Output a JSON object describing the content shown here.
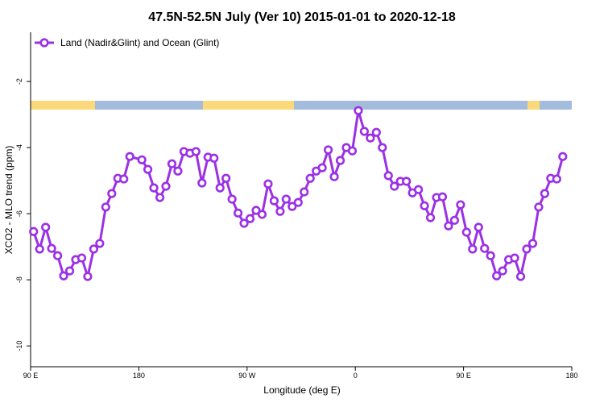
{
  "chart_data": {
    "type": "line",
    "title": "47.5N-52.5N July (Ver 10)   2015-01-01 to 2020-12-18",
    "x_label": "Longitude (deg E)",
    "y_label": "XCO2 - MLO trend (ppm)",
    "x": [
      92.5,
      97.5,
      102.5,
      107.5,
      112.5,
      117.5,
      122.5,
      127.5,
      132.5,
      137.5,
      142.5,
      147.5,
      152.5,
      157.5,
      162.5,
      167.5,
      172.5,
      182.5,
      187.5,
      192.5,
      197.5,
      202.5,
      207.5,
      212.5,
      217.5,
      222.5,
      227.5,
      232.5,
      237.5,
      242.5,
      247.5,
      252.5,
      257.5,
      262.5,
      267.5,
      272.5,
      277.5,
      282.5,
      287.5,
      292.5,
      297.5,
      302.5,
      307.5,
      312.5,
      317.5,
      322.5,
      327.5,
      332.5,
      337.5,
      342.5,
      347.5,
      352.5,
      357.5,
      362.5,
      367.5,
      372.5,
      377.5,
      382.5,
      387.5,
      392.5,
      397.5,
      402.5,
      407.5,
      412.5,
      417.5,
      422.5,
      427.5,
      432.5,
      437.5,
      442.5,
      447.5,
      452.5,
      457.5,
      462.5,
      467.5,
      472.5,
      477.5,
      482.5,
      487.5,
      492.5,
      497.5,
      502.5,
      507.5,
      512.5,
      517.5,
      522.5,
      527.5,
      532.5
    ],
    "series": [
      {
        "name": "Land (Nadir&Glint) and Ocean (Glint)",
        "color": "#9b30e6",
        "values": [
          -6.54,
          -7.07,
          -6.41,
          -7.05,
          -7.27,
          -7.88,
          -7.73,
          -7.39,
          -7.34,
          -7.9,
          -7.07,
          -6.9,
          -5.8,
          -5.39,
          -4.93,
          -4.95,
          -4.27,
          -4.37,
          -4.66,
          -5.22,
          -5.51,
          -5.17,
          -4.49,
          -4.71,
          -4.12,
          -4.17,
          -4.12,
          -5.07,
          -4.29,
          -4.32,
          -5.22,
          -4.93,
          -5.56,
          -5.98,
          -6.29,
          -6.15,
          -5.9,
          -6.02,
          -5.1,
          -5.61,
          -5.93,
          -5.56,
          -5.78,
          -5.66,
          -5.34,
          -4.93,
          -4.71,
          -4.61,
          -4.07,
          -4.88,
          -4.39,
          -4.0,
          -4.1,
          -2.88,
          -3.51,
          -3.71,
          -3.54,
          -4.0,
          -4.85,
          -5.17,
          -5.02,
          -5.02,
          -5.37,
          -5.27,
          -5.76,
          -6.12,
          -5.51,
          -5.49,
          -6.37,
          -6.2,
          -5.73,
          -6.56,
          -7.07,
          -6.41,
          -7.05,
          -7.27,
          -7.88,
          -7.73,
          -7.39,
          -7.34,
          -7.9,
          -7.07,
          -6.9,
          -5.8,
          -5.39,
          -4.93,
          -4.95,
          -4.27
        ]
      }
    ],
    "xlim": [
      90,
      540
    ],
    "xticks": [
      {
        "value": 90,
        "label": "90 E"
      },
      180,
      {
        "value": 270,
        "label": "90 W"
      },
      {
        "value": 360,
        "label": "0"
      },
      {
        "value": 450,
        "label": "90 E"
      },
      {
        "value": 540,
        "label": "180"
      }
    ],
    "ylim": [
      -10.63,
      -0.51
    ],
    "yticks": [
      -10,
      -8,
      -6,
      -4,
      -2
    ],
    "legend": "top-left"
  }
}
